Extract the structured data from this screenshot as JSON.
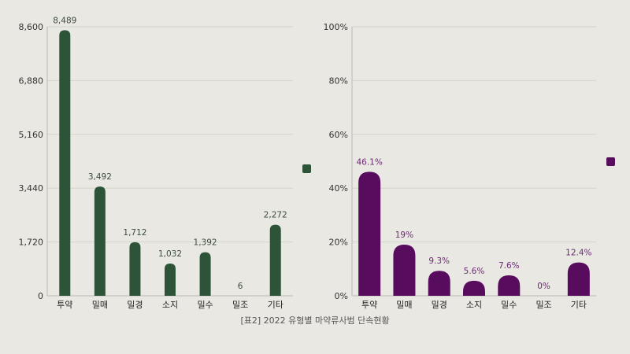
{
  "caption": "[표2] 2022 유형별 마약류사범 단속현황",
  "chart_data": [
    {
      "type": "bar",
      "categories": [
        "투약",
        "밀매",
        "밀경",
        "소지",
        "밀수",
        "밀조",
        "기타"
      ],
      "series": [
        {
          "values": [
            8489,
            3492,
            1712,
            1032,
            1392,
            6,
            2272
          ],
          "labels": [
            "8,489",
            "3,492",
            "1,712",
            "1,032",
            "1,392",
            "6",
            "2,272"
          ]
        }
      ],
      "yticks": [
        "0",
        "1,720",
        "3,440",
        "5,160",
        "6,880",
        "8,600"
      ],
      "ylim": [
        0,
        8600
      ],
      "grid": true,
      "legend": "right",
      "color": "#2d5438",
      "label_color": "#3b4a3f"
    },
    {
      "type": "bar",
      "categories": [
        "투약",
        "밀매",
        "밀경",
        "소지",
        "밀수",
        "밀조",
        "기타"
      ],
      "series": [
        {
          "values": [
            46.1,
            19,
            9.3,
            5.6,
            7.6,
            0,
            12.4
          ],
          "labels": [
            "46.1%",
            "19%",
            "9.3%",
            "5.6%",
            "7.6%",
            "0%",
            "12.4%"
          ]
        }
      ],
      "yticks": [
        "0%",
        "20%",
        "40%",
        "60%",
        "80%",
        "100%"
      ],
      "ylim": [
        0,
        100
      ],
      "grid": true,
      "legend": "right",
      "color": "#570c5e",
      "label_color": "#6a2a72"
    }
  ]
}
